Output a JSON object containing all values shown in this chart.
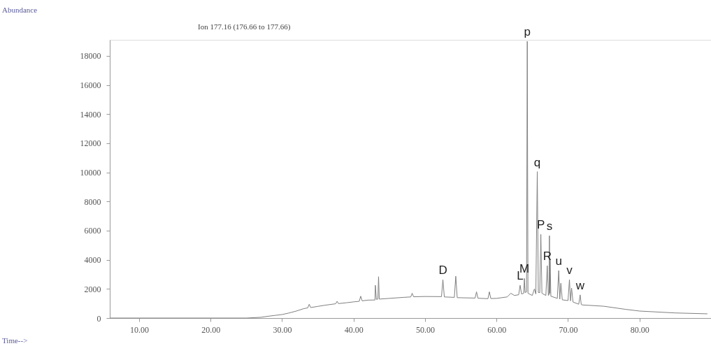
{
  "chart_data": {
    "type": "line",
    "title": "Ion 177.16 (176.66 to 177.66)",
    "xlim": [
      5.9,
      90
    ],
    "ylim": [
      0,
      19100
    ],
    "xticks": [
      {
        "value": 10,
        "label": "10.00"
      },
      {
        "value": 20,
        "label": "20.00"
      },
      {
        "value": 30,
        "label": "30.00"
      },
      {
        "value": 40,
        "label": "40.00"
      },
      {
        "value": 50,
        "label": "50.00"
      },
      {
        "value": 60,
        "label": "60.00"
      },
      {
        "value": 70,
        "label": "70.00"
      },
      {
        "value": 80,
        "label": "80.00"
      }
    ],
    "yticks": [
      0,
      2000,
      4000,
      6000,
      8000,
      10000,
      12000,
      14000,
      16000,
      18000
    ],
    "grid": false,
    "marker": "none",
    "line_style": "solid",
    "series": [
      {
        "color": "#808080",
        "x": [
          5.9,
          25,
          27,
          28,
          29,
          30,
          31,
          32,
          33,
          33.6,
          33.8,
          34,
          35,
          36,
          37.5,
          37.7,
          37.9,
          39,
          40,
          40.8,
          41,
          41.2,
          42,
          43.0,
          43.05,
          43.2,
          43.4,
          43.5,
          43.6,
          45,
          47,
          48,
          48.2,
          48.4,
          50,
          52.3,
          52.5,
          52.7,
          54.1,
          54.3,
          54.5,
          57,
          57.2,
          57.4,
          58.8,
          59,
          59.2,
          60,
          61.5,
          62,
          62.5,
          63.1,
          63.3,
          63.5,
          63.8,
          63.9,
          64.0,
          64.2,
          64.3,
          64.4,
          65.0,
          65.3,
          65.5,
          65.7,
          65.85,
          66.05,
          66.2,
          66.35,
          66.9,
          67.1,
          67.25,
          67.35,
          67.4,
          67.45,
          67.5,
          67.6,
          68.5,
          68.7,
          68.85,
          69.0,
          69.2,
          70.0,
          70.2,
          70.35,
          70.5,
          70.7,
          71.5,
          71.7,
          71.85,
          72,
          75,
          78,
          80,
          85,
          89.5
        ],
        "values": [
          0,
          0,
          50,
          120,
          180,
          240,
          350,
          480,
          640,
          700,
          950,
          720,
          800,
          880,
          980,
          1150,
          990,
          1050,
          1110,
          1150,
          1500,
          1180,
          1230,
          1240,
          2250,
          1280,
          1300,
          2840,
          1300,
          1350,
          1420,
          1450,
          1700,
          1460,
          1480,
          1470,
          2630,
          1450,
          1420,
          2870,
          1400,
          1370,
          1800,
          1360,
          1330,
          1800,
          1340,
          1350,
          1450,
          1700,
          1550,
          1600,
          2250,
          1650,
          1700,
          2720,
          1750,
          1800,
          19000,
          1700,
          1550,
          2000,
          1650,
          10050,
          1750,
          1750,
          5740,
          1700,
          1550,
          3590,
          1550,
          1600,
          5650,
          1700,
          3970,
          1500,
          1350,
          3260,
          1300,
          2390,
          1250,
          1200,
          2630,
          1180,
          2050,
          1100,
          950,
          1590,
          930,
          900,
          810,
          600,
          480,
          350,
          290
        ]
      }
    ],
    "annotations": [
      {
        "text": "p",
        "x": 64.3,
        "y": 19000
      },
      {
        "text": "q",
        "x": 65.7,
        "y": 10050
      },
      {
        "text": "P",
        "x": 66.2,
        "y": 5740
      },
      {
        "text": "s",
        "x": 67.4,
        "y": 5650
      },
      {
        "text": "R",
        "x": 67.1,
        "y": 3590
      },
      {
        "text": "u",
        "x": 68.7,
        "y": 3260
      },
      {
        "text": "v",
        "x": 70.2,
        "y": 2630
      },
      {
        "text": "w",
        "x": 71.7,
        "y": 1590
      },
      {
        "text": "M",
        "x": 63.9,
        "y": 2720
      },
      {
        "text": "L",
        "x": 63.3,
        "y": 2250
      },
      {
        "text": "D",
        "x": 52.5,
        "y": 2630
      },
      "Abundance",
      "Time-->"
    ]
  }
}
